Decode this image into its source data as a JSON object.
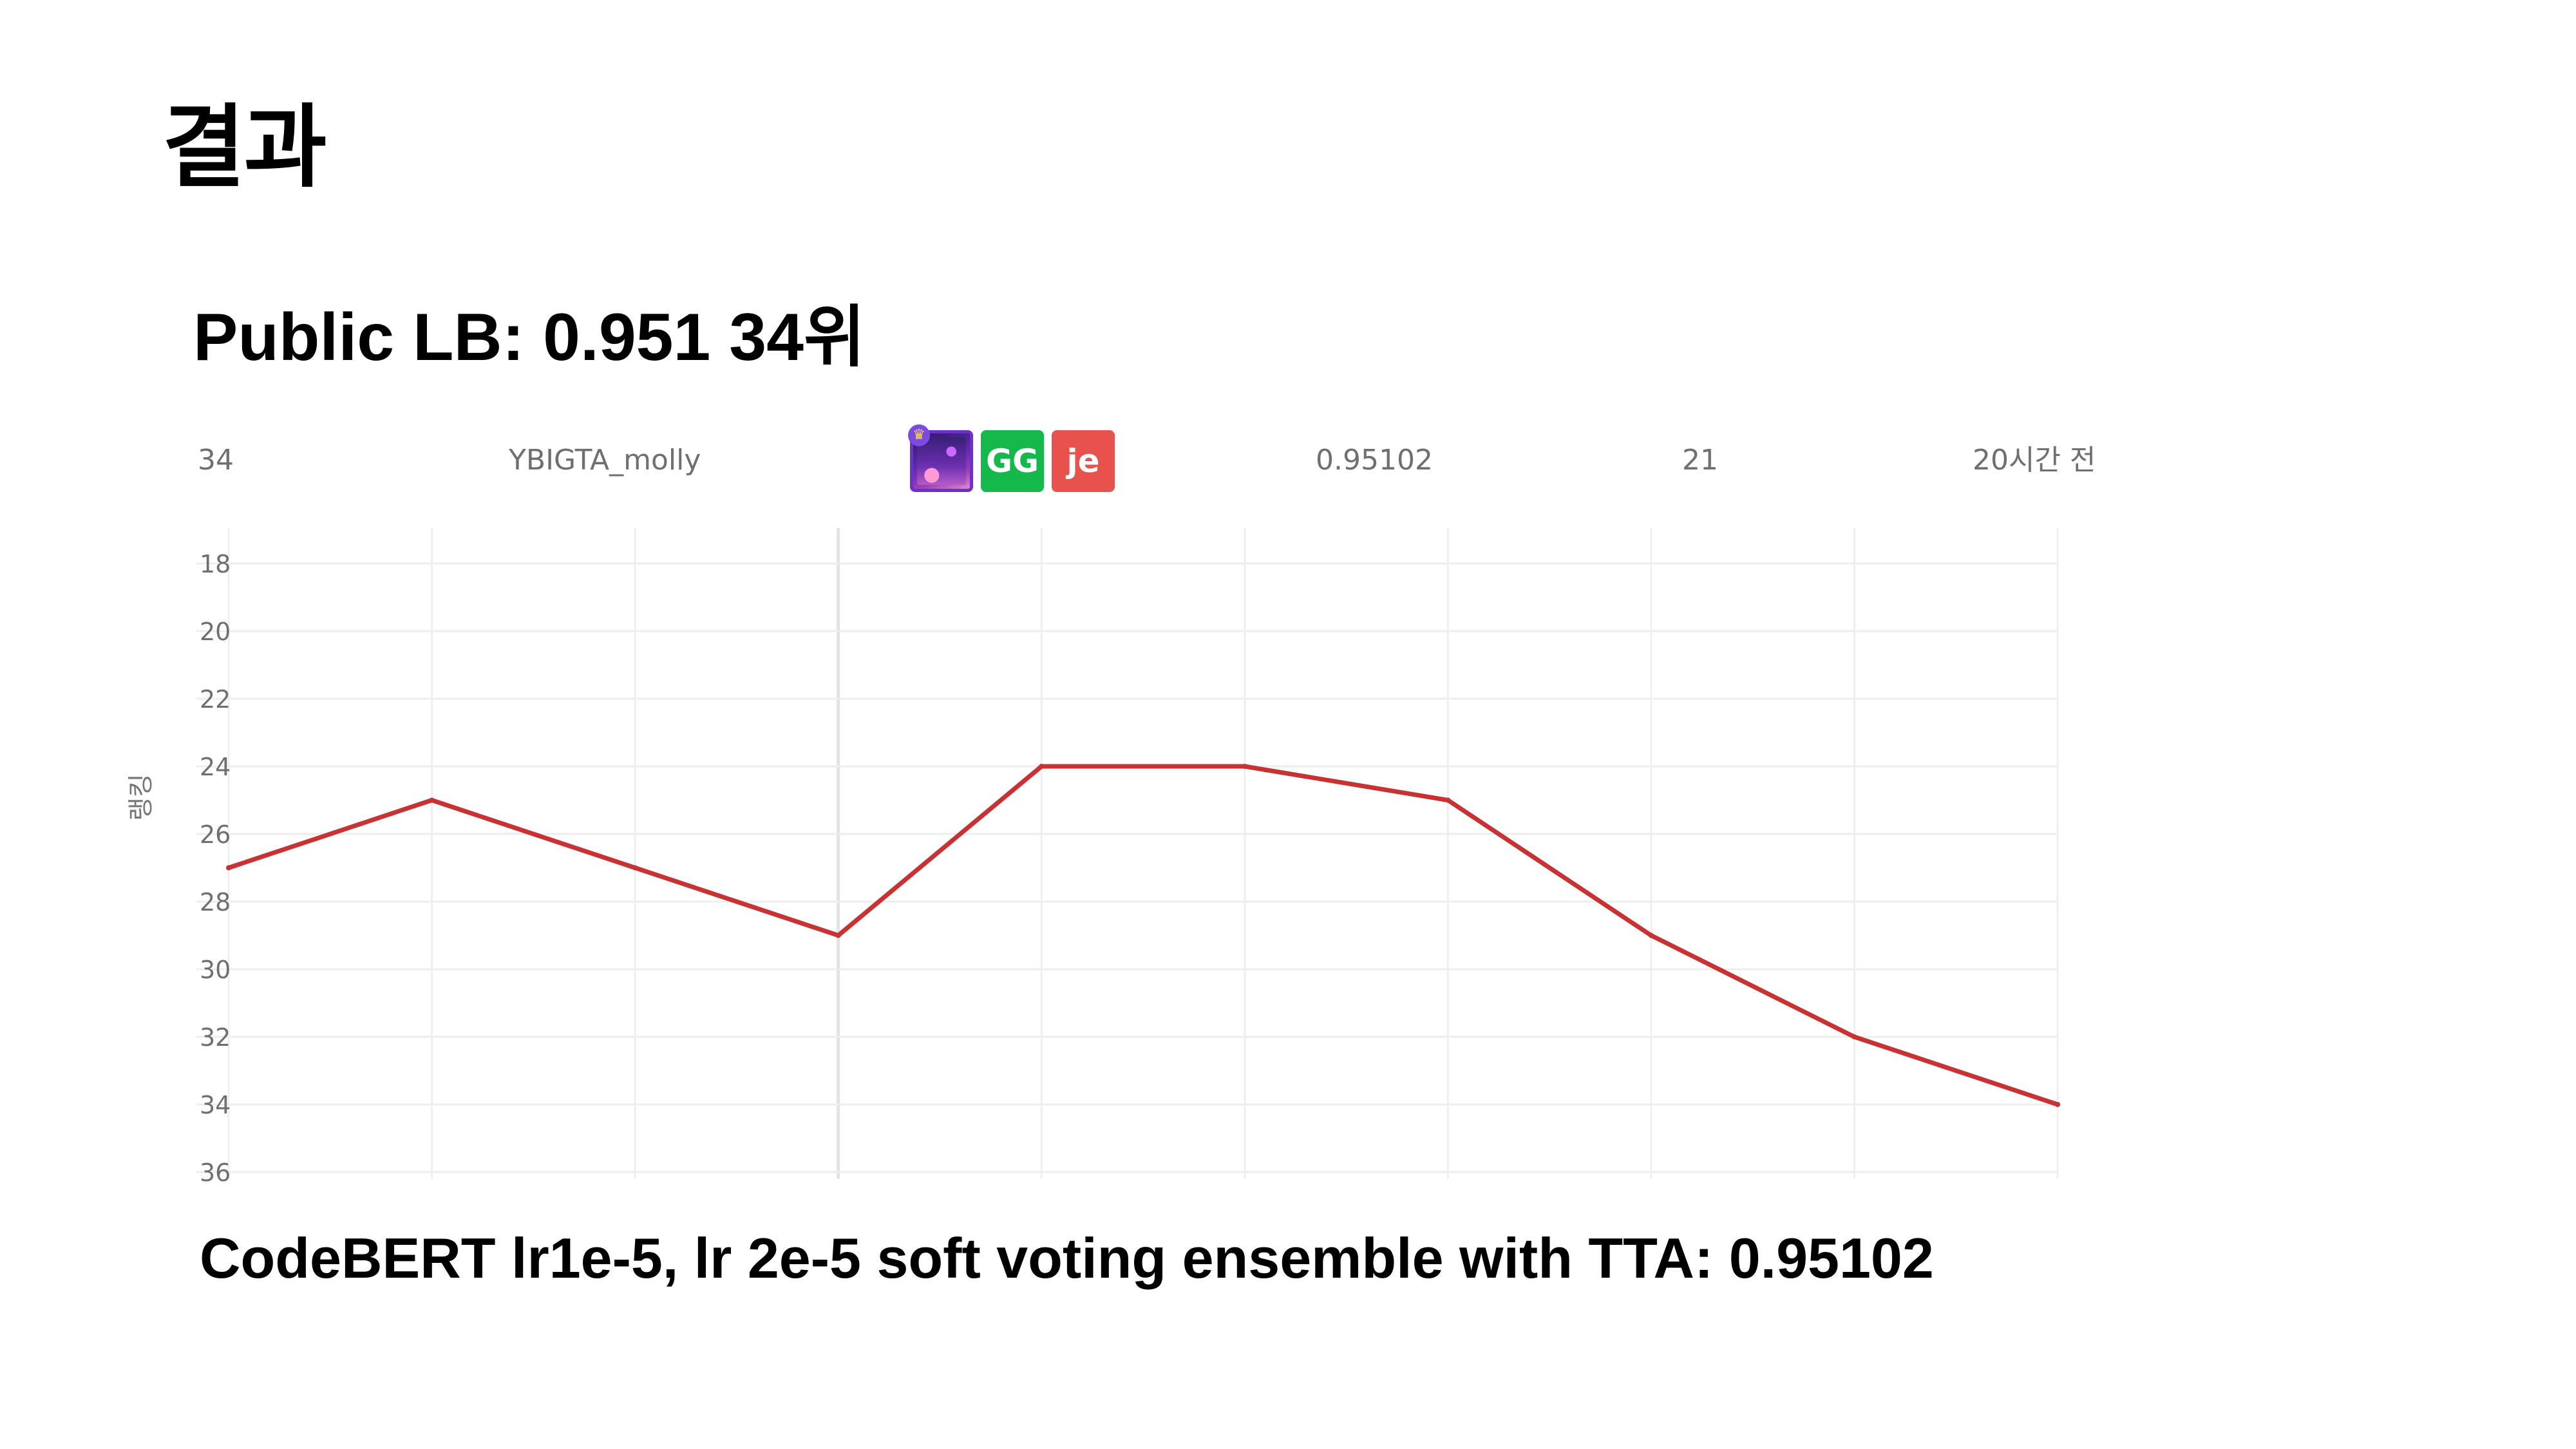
{
  "slide": {
    "title": "결과",
    "heading": "Public LB: 0.951 34위",
    "caption": "CodeBERT lr1e-5, lr 2e-5 soft voting ensemble with TTA: 0.95102"
  },
  "leaderboard_row": {
    "rank": "34",
    "team": "YBIGTA_molly",
    "members": [
      {
        "type": "image",
        "icon": "purple-landscape-avatar-icon",
        "badge_icon": "crown-icon"
      },
      {
        "type": "initials",
        "text": "GG",
        "color": "#15b84b"
      },
      {
        "type": "initials",
        "text": "je",
        "color": "#e8524c"
      }
    ],
    "score": "0.95102",
    "entries": "21",
    "last_submission": "20시간 전"
  },
  "chart_data": {
    "type": "line",
    "title": "",
    "xlabel": "",
    "ylabel": "랭킹",
    "y_reversed": true,
    "ylim": [
      18,
      36
    ],
    "y_ticks": [
      18,
      20,
      22,
      24,
      26,
      28,
      30,
      32,
      34,
      36
    ],
    "x_count": 10,
    "grid": true,
    "series": [
      {
        "color": "#c83232",
        "values": [
          27,
          25,
          27,
          29,
          24,
          24,
          25,
          29,
          32,
          34
        ]
      }
    ]
  }
}
